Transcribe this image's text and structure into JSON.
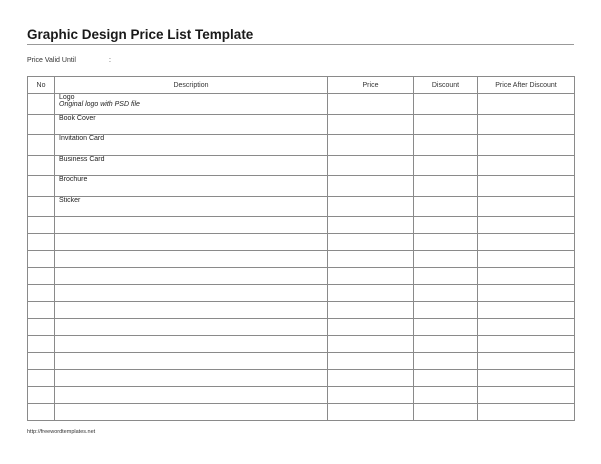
{
  "title": "Graphic Design Price List Template",
  "price_valid_until_label": "Price Valid Until",
  "price_valid_until_colon": ":",
  "table": {
    "headers": [
      "No",
      "Description",
      "Price",
      "Discount",
      "Price After Discount"
    ],
    "rows": [
      {
        "no": "",
        "description": "Logo",
        "note": "Original logo with PSD file",
        "price": "",
        "discount": "",
        "after": ""
      },
      {
        "no": "",
        "description": "Book Cover",
        "note": "",
        "price": "",
        "discount": "",
        "after": ""
      },
      {
        "no": "",
        "description": "Invitation Card",
        "note": "",
        "price": "",
        "discount": "",
        "after": ""
      },
      {
        "no": "",
        "description": "Business Card",
        "note": "",
        "price": "",
        "discount": "",
        "after": ""
      },
      {
        "no": "",
        "description": "Brochure",
        "note": "",
        "price": "",
        "discount": "",
        "after": ""
      },
      {
        "no": "",
        "description": "Sticker",
        "note": "",
        "price": "",
        "discount": "",
        "after": ""
      }
    ],
    "empty_rows": 12
  },
  "footer": "http://freewordtemplates.net"
}
